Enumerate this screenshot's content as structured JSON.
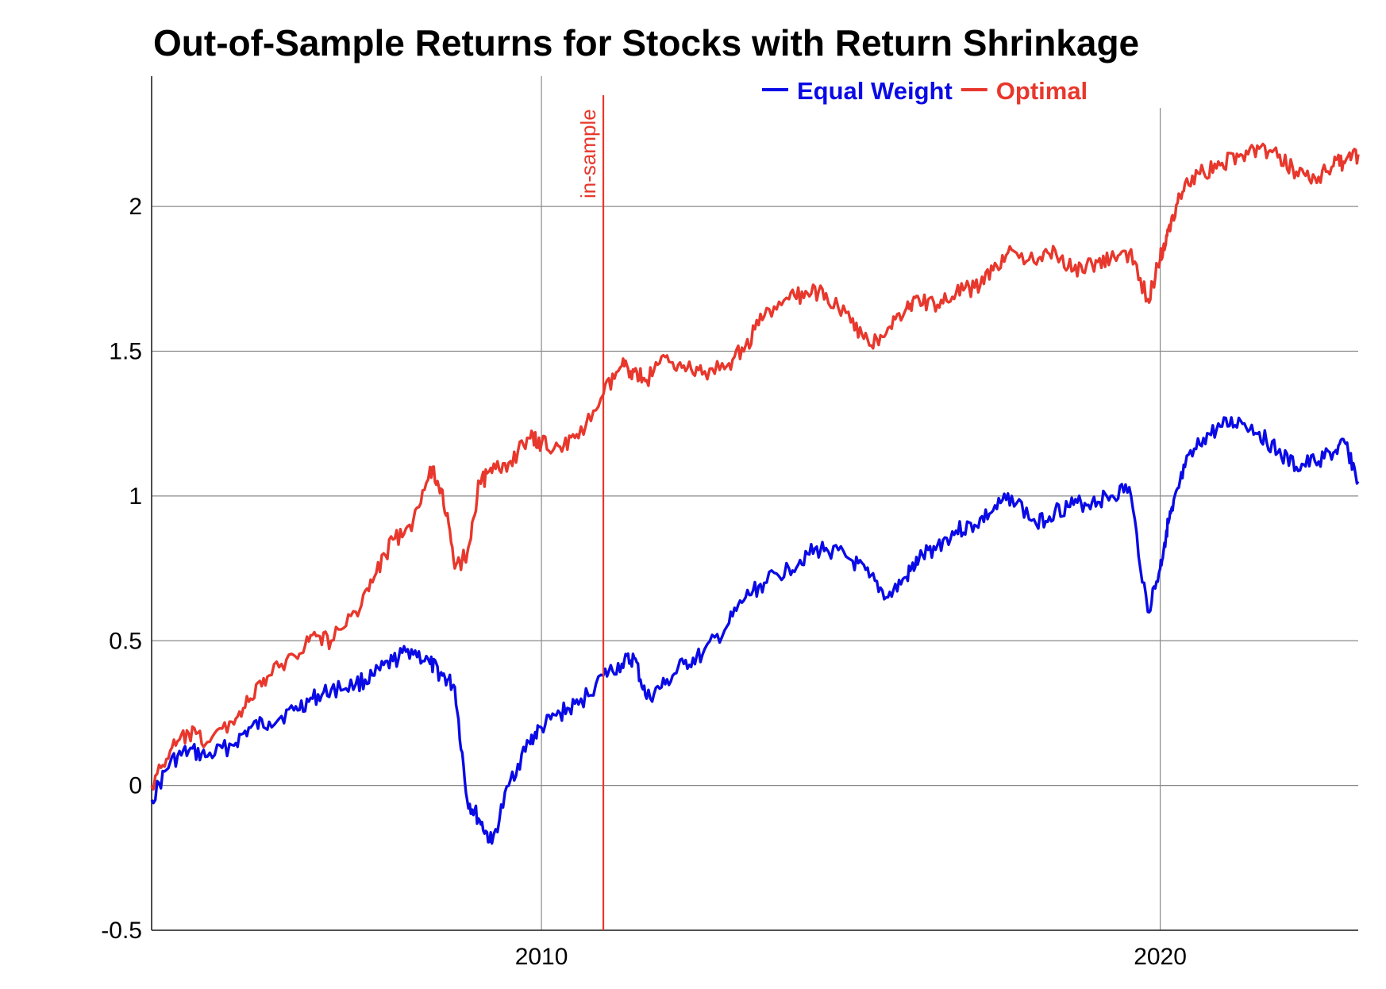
{
  "chart_data": {
    "type": "line",
    "title": "Out-of-Sample Returns for Stocks with Return Shrinkage",
    "xlabel": "",
    "ylabel": "",
    "xlim": [
      2003.7,
      2023.2
    ],
    "ylim": [
      -0.5,
      2.45
    ],
    "x_ticks": [
      {
        "value": 2010,
        "label": "2010"
      },
      {
        "value": 2020,
        "label": "2020"
      }
    ],
    "y_ticks": [
      {
        "value": -0.5,
        "label": "-0.5"
      },
      {
        "value": 0,
        "label": "0"
      },
      {
        "value": 0.5,
        "label": "0.5"
      },
      {
        "value": 1,
        "label": "1"
      },
      {
        "value": 1.5,
        "label": "1.5"
      },
      {
        "value": 2,
        "label": "2"
      }
    ],
    "grid": true,
    "legend_position": "top-center",
    "vertical_marker": {
      "x": 2011.0,
      "label": "in-sample",
      "color": "#e8372c"
    },
    "series": [
      {
        "name": "Equal Weight",
        "color": "#0a0ae6",
        "x": [
          2003.7,
          2004.0,
          2004.3,
          2004.6,
          2005.0,
          2005.3,
          2005.6,
          2006.0,
          2006.3,
          2006.6,
          2007.0,
          2007.3,
          2007.6,
          2007.9,
          2008.2,
          2008.4,
          2008.6,
          2008.8,
          2009.0,
          2009.2,
          2009.5,
          2009.8,
          2010.0,
          2010.3,
          2010.6,
          2011.0,
          2011.3,
          2011.5,
          2011.7,
          2012.0,
          2012.3,
          2012.6,
          2013.0,
          2013.3,
          2013.6,
          2014.0,
          2014.3,
          2014.6,
          2015.0,
          2015.3,
          2015.6,
          2015.9,
          2016.1,
          2016.4,
          2016.7,
          2017.0,
          2017.3,
          2017.6,
          2018.0,
          2018.3,
          2018.6,
          2018.9,
          2019.2,
          2019.5,
          2019.8,
          2020.0,
          2020.1,
          2020.2,
          2020.4,
          2020.7,
          2021.0,
          2021.3,
          2021.6,
          2021.9,
          2022.2,
          2022.5,
          2022.8,
          2023.0,
          2023.2
        ],
        "y": [
          -0.05,
          0.08,
          0.12,
          0.1,
          0.14,
          0.2,
          0.22,
          0.26,
          0.3,
          0.33,
          0.35,
          0.38,
          0.43,
          0.47,
          0.42,
          0.38,
          0.34,
          -0.05,
          -0.12,
          -0.2,
          0.02,
          0.15,
          0.2,
          0.25,
          0.28,
          0.38,
          0.42,
          0.44,
          0.3,
          0.35,
          0.42,
          0.45,
          0.55,
          0.65,
          0.7,
          0.75,
          0.8,
          0.82,
          0.78,
          0.72,
          0.65,
          0.72,
          0.78,
          0.83,
          0.88,
          0.9,
          0.95,
          1.0,
          0.9,
          0.95,
          0.97,
          0.98,
          1.0,
          1.03,
          0.6,
          0.75,
          0.88,
          0.95,
          1.1,
          1.2,
          1.24,
          1.26,
          1.22,
          1.15,
          1.1,
          1.12,
          1.15,
          1.18,
          1.05
        ]
      },
      {
        "name": "Optimal",
        "color": "#e8372c",
        "x": [
          2003.7,
          2004.0,
          2004.3,
          2004.6,
          2005.0,
          2005.3,
          2005.6,
          2006.0,
          2006.3,
          2006.6,
          2007.0,
          2007.3,
          2007.6,
          2007.9,
          2008.2,
          2008.4,
          2008.6,
          2008.8,
          2009.0,
          2009.2,
          2009.5,
          2009.8,
          2010.0,
          2010.3,
          2010.6,
          2011.0,
          2011.3,
          2011.5,
          2011.7,
          2012.0,
          2012.3,
          2012.6,
          2013.0,
          2013.3,
          2013.6,
          2014.0,
          2014.3,
          2014.6,
          2015.0,
          2015.3,
          2015.6,
          2015.9,
          2016.1,
          2016.4,
          2016.7,
          2017.0,
          2017.3,
          2017.6,
          2018.0,
          2018.3,
          2018.6,
          2018.9,
          2019.2,
          2019.5,
          2019.8,
          2020.0,
          2020.1,
          2020.2,
          2020.4,
          2020.7,
          2021.0,
          2021.3,
          2021.6,
          2021.9,
          2022.2,
          2022.5,
          2022.8,
          2023.0,
          2023.2
        ],
        "y": [
          0.0,
          0.12,
          0.18,
          0.15,
          0.22,
          0.3,
          0.38,
          0.45,
          0.52,
          0.5,
          0.6,
          0.72,
          0.85,
          0.88,
          1.1,
          1.02,
          0.75,
          0.8,
          1.05,
          1.08,
          1.12,
          1.2,
          1.18,
          1.17,
          1.2,
          1.35,
          1.45,
          1.43,
          1.4,
          1.48,
          1.45,
          1.42,
          1.45,
          1.52,
          1.62,
          1.68,
          1.7,
          1.7,
          1.6,
          1.52,
          1.58,
          1.65,
          1.68,
          1.66,
          1.7,
          1.72,
          1.78,
          1.85,
          1.8,
          1.85,
          1.78,
          1.8,
          1.82,
          1.84,
          1.68,
          1.82,
          1.9,
          1.97,
          2.08,
          2.12,
          2.15,
          2.18,
          2.2,
          2.17,
          2.12,
          2.1,
          2.14,
          2.16,
          2.18
        ]
      }
    ]
  }
}
